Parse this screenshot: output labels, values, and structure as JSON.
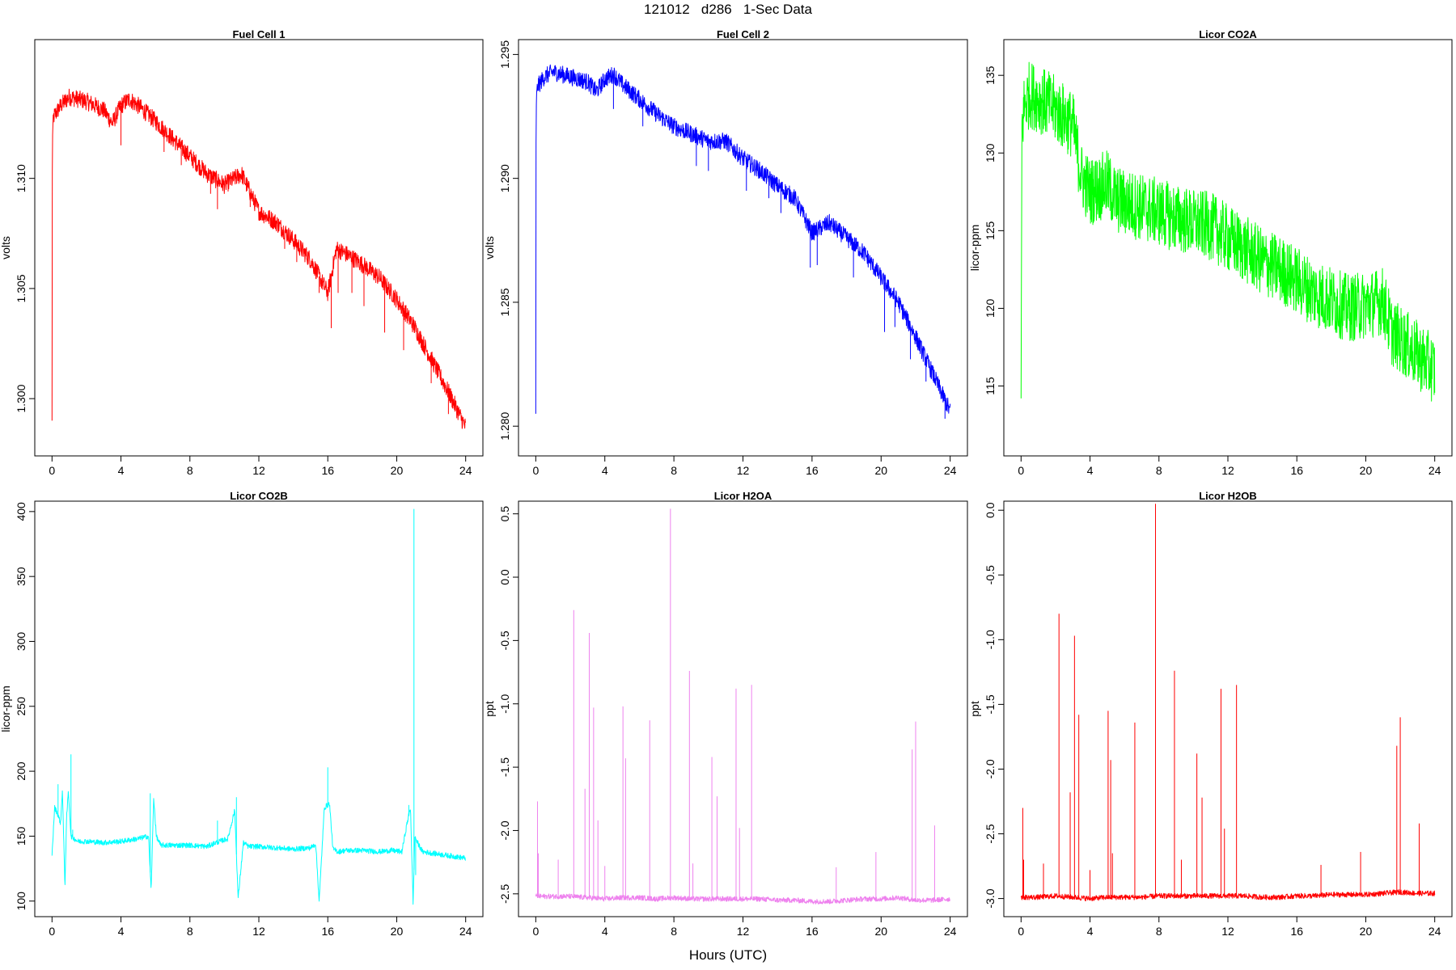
{
  "figure": {
    "title": "121012   d286   1-Sec Data",
    "xlabel": "Hours (UTC)"
  },
  "chart_data": [
    {
      "type": "line",
      "title": "Fuel Cell 1",
      "xlabel": "",
      "ylabel": "volts",
      "color": "#ff0000",
      "xlim": [
        -1,
        25
      ],
      "ylim": [
        1.2974,
        1.3163
      ],
      "xticks": [
        0,
        4,
        8,
        12,
        16,
        20,
        24
      ],
      "yticks": [
        1.3,
        1.305,
        1.31
      ],
      "ytick_labels": [
        "1.300",
        "1.305",
        "1.310"
      ],
      "noise": 0.0004,
      "x": [
        0,
        0.02,
        0.1,
        0.5,
        1,
        2,
        3,
        3.5,
        4,
        4.5,
        5,
        6,
        7,
        8,
        9,
        10,
        11,
        12,
        13,
        14,
        15,
        16,
        16.5,
        17,
        18,
        19,
        20,
        21,
        22,
        23,
        24
      ],
      "y": [
        1.299,
        1.312,
        1.3128,
        1.3133,
        1.3137,
        1.3135,
        1.3131,
        1.3125,
        1.3133,
        1.3136,
        1.3133,
        1.3126,
        1.3118,
        1.311,
        1.3102,
        1.3097,
        1.3102,
        1.3085,
        1.308,
        1.3072,
        1.3063,
        1.3048,
        1.3068,
        1.3066,
        1.3061,
        1.3055,
        1.3045,
        1.3033,
        1.3018,
        1.3003,
        1.2987
      ],
      "spikes": [
        {
          "x": 4.0,
          "y": 1.3115
        },
        {
          "x": 6.5,
          "y": 1.3112
        },
        {
          "x": 7.5,
          "y": 1.3106
        },
        {
          "x": 9.2,
          "y": 1.3093
        },
        {
          "x": 9.6,
          "y": 1.3086
        },
        {
          "x": 11.5,
          "y": 1.3087
        },
        {
          "x": 13.5,
          "y": 1.3068
        },
        {
          "x": 14.2,
          "y": 1.3062
        },
        {
          "x": 15.5,
          "y": 1.3048
        },
        {
          "x": 16.2,
          "y": 1.3032
        },
        {
          "x": 16.6,
          "y": 1.3048
        },
        {
          "x": 17.4,
          "y": 1.3048
        },
        {
          "x": 18.1,
          "y": 1.3042
        },
        {
          "x": 19.3,
          "y": 1.303
        },
        {
          "x": 20.4,
          "y": 1.3022
        },
        {
          "x": 22.0,
          "y": 1.3007
        },
        {
          "x": 23.0,
          "y": 1.2993
        }
      ]
    },
    {
      "type": "line",
      "title": "Fuel Cell 2",
      "xlabel": "",
      "ylabel": "volts",
      "color": "#0000ff",
      "xlim": [
        -1,
        25
      ],
      "ylim": [
        1.2788,
        1.2956
      ],
      "xticks": [
        0,
        4,
        8,
        12,
        16,
        20,
        24
      ],
      "yticks": [
        1.28,
        1.285,
        1.29,
        1.295
      ],
      "ytick_labels": [
        "1.280",
        "1.285",
        "1.290",
        "1.295"
      ],
      "noise": 0.00035,
      "x": [
        0,
        0.02,
        0.1,
        0.5,
        1,
        2,
        3,
        3.5,
        4,
        4.5,
        5,
        6,
        7,
        8,
        9,
        10,
        11,
        12,
        13,
        14,
        15,
        16,
        17,
        18,
        19,
        20,
        21,
        22,
        23,
        24
      ],
      "y": [
        1.2805,
        1.293,
        1.2937,
        1.2941,
        1.2943,
        1.2941,
        1.2939,
        1.2935,
        1.294,
        1.2942,
        1.2938,
        1.2932,
        1.2926,
        1.2921,
        1.2918,
        1.2915,
        1.2915,
        1.2908,
        1.2903,
        1.2897,
        1.2892,
        1.2878,
        1.2882,
        1.2876,
        1.287,
        1.286,
        1.285,
        1.2836,
        1.2821,
        1.2806
      ],
      "spikes": [
        {
          "x": 4.5,
          "y": 1.2928
        },
        {
          "x": 6.2,
          "y": 1.2921
        },
        {
          "x": 9.3,
          "y": 1.2905
        },
        {
          "x": 10.0,
          "y": 1.2903
        },
        {
          "x": 12.2,
          "y": 1.2895
        },
        {
          "x": 13.5,
          "y": 1.2892
        },
        {
          "x": 14.2,
          "y": 1.2886
        },
        {
          "x": 15.9,
          "y": 1.2864
        },
        {
          "x": 16.3,
          "y": 1.2865
        },
        {
          "x": 18.4,
          "y": 1.286
        },
        {
          "x": 20.2,
          "y": 1.2838
        },
        {
          "x": 20.8,
          "y": 1.284
        },
        {
          "x": 21.7,
          "y": 1.2827
        },
        {
          "x": 22.6,
          "y": 1.2818
        },
        {
          "x": 23.7,
          "y": 1.2803
        }
      ]
    },
    {
      "type": "line",
      "title": "Licor CO2A",
      "xlabel": "",
      "ylabel": "licor-ppm",
      "color": "#00ff00",
      "xlim": [
        -1,
        25
      ],
      "ylim": [
        110.5,
        137.3
      ],
      "xticks": [
        0,
        4,
        8,
        12,
        16,
        20,
        24
      ],
      "yticks": [
        115,
        120,
        125,
        130,
        135
      ],
      "ytick_labels": [
        "115",
        "120",
        "125",
        "130",
        "135"
      ],
      "noise": 2.2,
      "x": [
        0,
        0.05,
        0.2,
        0.5,
        1,
        2,
        3,
        3.5,
        4,
        5,
        5.5,
        6,
        7,
        8,
        9,
        10,
        11,
        12,
        13,
        14,
        15,
        16,
        17,
        18,
        19,
        20,
        21,
        21.5,
        22,
        23,
        24
      ],
      "y": [
        114.2,
        131.5,
        133.2,
        133.8,
        133.5,
        132.8,
        131.8,
        128.5,
        127.5,
        128.0,
        127.0,
        126.8,
        126.5,
        126.2,
        125.8,
        125.5,
        125.3,
        124.5,
        123.8,
        123.0,
        122.5,
        121.8,
        121.0,
        120.5,
        120.0,
        120.2,
        120.5,
        118.5,
        118.0,
        117.0,
        116.0
      ]
    },
    {
      "type": "line",
      "title": "Licor CO2B",
      "xlabel": "",
      "ylabel": "licor-ppm",
      "color": "#00ffff",
      "xlim": [
        -1,
        25
      ],
      "ylim": [
        88,
        408
      ],
      "xticks": [
        0,
        4,
        8,
        12,
        16,
        20,
        24
      ],
      "yticks": [
        100,
        150,
        200,
        250,
        300,
        350,
        400
      ],
      "ytick_labels": [
        "100",
        "150",
        "200",
        "250",
        "300",
        "350",
        "400"
      ],
      "noise": 2.0,
      "x": [
        0,
        0.15,
        0.3,
        0.5,
        0.6,
        0.75,
        0.85,
        0.95,
        1.1,
        1.3,
        1.5,
        2,
        3,
        4,
        5,
        5.6,
        5.75,
        5.9,
        6.05,
        6.3,
        7,
        8,
        9,
        9.5,
        10.2,
        10.6,
        10.8,
        11.1,
        11.4,
        12,
        13,
        14,
        15,
        15.3,
        15.5,
        15.8,
        16.1,
        16.3,
        16.6,
        17,
        18,
        19,
        19.7,
        20.3,
        20.6,
        20.8,
        20.95,
        21.05,
        21.2,
        21.5,
        22,
        23,
        24
      ],
      "y": [
        135,
        172,
        168,
        160,
        186,
        112,
        165,
        185,
        150,
        148,
        146,
        146,
        145,
        146,
        148,
        150,
        108,
        180,
        150,
        143,
        143,
        143,
        142,
        145,
        148,
        170,
        102,
        145,
        142,
        142,
        141,
        140,
        141,
        144,
        100,
        172,
        175,
        140,
        138,
        139,
        139,
        138,
        139,
        138,
        160,
        172,
        98,
        150,
        145,
        138,
        137,
        135,
        133
      ],
      "spikes": [
        {
          "x": 0.35,
          "y": 190
        },
        {
          "x": 1.1,
          "y": 213
        },
        {
          "x": 1.2,
          "y": 155
        },
        {
          "x": 5.7,
          "y": 183
        },
        {
          "x": 9.6,
          "y": 162
        },
        {
          "x": 10.7,
          "y": 180
        },
        {
          "x": 16.0,
          "y": 203
        },
        {
          "x": 20.7,
          "y": 174
        },
        {
          "x": 21.0,
          "y": 402
        },
        {
          "x": 21.1,
          "y": 120
        }
      ]
    },
    {
      "type": "line",
      "title": "Licor H2OA",
      "xlabel": "",
      "ylabel": "ppt",
      "color": "#ee82ee",
      "xlim": [
        -1,
        25
      ],
      "ylim": [
        -2.68,
        0.6
      ],
      "xticks": [
        0,
        4,
        8,
        12,
        16,
        20,
        24
      ],
      "yticks": [
        -2.5,
        -2.0,
        -1.5,
        -1.0,
        -0.5,
        0.0,
        0.5
      ],
      "ytick_labels": [
        "-2.5",
        "-2.0",
        "-1.5",
        "-1.0",
        "-0.5",
        "0.0",
        "0.5"
      ],
      "noise": 0.02,
      "x": [
        0,
        1,
        2,
        3,
        4,
        5,
        6,
        7,
        8,
        9,
        10,
        11,
        12,
        13,
        14,
        15,
        16,
        17,
        18,
        19,
        20,
        21,
        22,
        23,
        24
      ],
      "y": [
        -2.52,
        -2.52,
        -2.52,
        -2.53,
        -2.54,
        -2.53,
        -2.53,
        -2.54,
        -2.53,
        -2.54,
        -2.54,
        -2.54,
        -2.54,
        -2.54,
        -2.55,
        -2.55,
        -2.56,
        -2.56,
        -2.55,
        -2.54,
        -2.54,
        -2.53,
        -2.55,
        -2.55,
        -2.54
      ],
      "spikes": [
        {
          "x": 0.1,
          "y": -1.77
        },
        {
          "x": 0.15,
          "y": -2.18
        },
        {
          "x": 1.3,
          "y": -2.23
        },
        {
          "x": 2.2,
          "y": -0.26
        },
        {
          "x": 2.85,
          "y": -1.67
        },
        {
          "x": 3.1,
          "y": -0.44
        },
        {
          "x": 3.35,
          "y": -1.03
        },
        {
          "x": 3.6,
          "y": -1.92
        },
        {
          "x": 4.0,
          "y": -2.28
        },
        {
          "x": 5.05,
          "y": -1.02
        },
        {
          "x": 5.2,
          "y": -1.43
        },
        {
          "x": 6.6,
          "y": -1.13
        },
        {
          "x": 7.8,
          "y": 0.54
        },
        {
          "x": 8.9,
          "y": -0.74
        },
        {
          "x": 9.1,
          "y": -2.26
        },
        {
          "x": 10.2,
          "y": -1.42
        },
        {
          "x": 10.5,
          "y": -1.73
        },
        {
          "x": 11.6,
          "y": -0.88
        },
        {
          "x": 11.8,
          "y": -1.98
        },
        {
          "x": 12.5,
          "y": -0.85
        },
        {
          "x": 17.4,
          "y": -2.29
        },
        {
          "x": 19.7,
          "y": -2.17
        },
        {
          "x": 21.8,
          "y": -1.36
        },
        {
          "x": 22.0,
          "y": -1.14
        },
        {
          "x": 23.1,
          "y": -1.96
        }
      ]
    },
    {
      "type": "line",
      "title": "Licor H2OB",
      "xlabel": "",
      "ylabel": "ppt",
      "color": "#ff0000",
      "xlim": [
        -1,
        25
      ],
      "ylim": [
        -3.14,
        0.07
      ],
      "xticks": [
        0,
        4,
        8,
        12,
        16,
        20,
        24
      ],
      "yticks": [
        -3.0,
        -2.5,
        -2.0,
        -1.5,
        -1.0,
        -0.5,
        0.0
      ],
      "ytick_labels": [
        "-3.0",
        "-2.5",
        "-2.0",
        "-1.5",
        "-1.0",
        "-0.5",
        "0.0"
      ],
      "noise": 0.02,
      "x": [
        0,
        1,
        2,
        3,
        4,
        5,
        6,
        7,
        8,
        9,
        10,
        11,
        12,
        13,
        14,
        15,
        16,
        17,
        18,
        19,
        20,
        21,
        22,
        23,
        24
      ],
      "y": [
        -2.99,
        -2.99,
        -2.98,
        -2.99,
        -3.0,
        -2.99,
        -2.99,
        -2.99,
        -2.98,
        -2.98,
        -2.98,
        -2.98,
        -2.98,
        -2.98,
        -2.99,
        -2.99,
        -2.98,
        -2.98,
        -2.97,
        -2.97,
        -2.97,
        -2.96,
        -2.95,
        -2.96,
        -2.96
      ],
      "spikes": [
        {
          "x": 0.1,
          "y": -2.3
        },
        {
          "x": 0.15,
          "y": -2.7
        },
        {
          "x": 1.3,
          "y": -2.73
        },
        {
          "x": 2.2,
          "y": -0.8
        },
        {
          "x": 2.85,
          "y": -2.18
        },
        {
          "x": 3.1,
          "y": -0.97
        },
        {
          "x": 3.35,
          "y": -1.58
        },
        {
          "x": 4.0,
          "y": -2.78
        },
        {
          "x": 5.05,
          "y": -1.55
        },
        {
          "x": 5.2,
          "y": -1.93
        },
        {
          "x": 5.3,
          "y": -2.65
        },
        {
          "x": 6.6,
          "y": -1.64
        },
        {
          "x": 7.8,
          "y": 0.05
        },
        {
          "x": 8.9,
          "y": -1.24
        },
        {
          "x": 9.3,
          "y": -2.7
        },
        {
          "x": 10.2,
          "y": -1.88
        },
        {
          "x": 10.5,
          "y": -2.22
        },
        {
          "x": 11.6,
          "y": -1.38
        },
        {
          "x": 11.8,
          "y": -2.46
        },
        {
          "x": 12.5,
          "y": -1.35
        },
        {
          "x": 17.4,
          "y": -2.74
        },
        {
          "x": 19.7,
          "y": -2.64
        },
        {
          "x": 21.8,
          "y": -1.82
        },
        {
          "x": 22.0,
          "y": -1.6
        },
        {
          "x": 23.1,
          "y": -2.42
        }
      ]
    }
  ]
}
